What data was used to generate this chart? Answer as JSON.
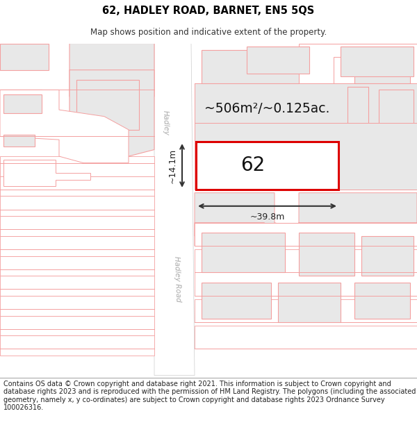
{
  "title_line1": "62, HADLEY ROAD, BARNET, EN5 5QS",
  "title_line2": "Map shows position and indicative extent of the property.",
  "footer_text": "Contains OS data © Crown copyright and database right 2021. This information is subject to Crown copyright and database rights 2023 and is reproduced with the permission of HM Land Registry. The polygons (including the associated geometry, namely x, y co-ordinates) are subject to Crown copyright and database rights 2023 Ordnance Survey 100026316.",
  "bg_color": "#ffffff",
  "map_bg": "#ffffff",
  "road_color": "#ffffff",
  "building_outline_color": "#f4a0a0",
  "building_fill_color": "#e8e8e8",
  "target_outline_color": "#dd0000",
  "annotation_color": "#222222",
  "road_text_color": "#999999",
  "area_text": "~506m²/~0.125ac.",
  "width_text": "~39.8m",
  "height_text": "~14.1m",
  "property_number": "62",
  "title_fontsize": 10.5,
  "subtitle_fontsize": 8.5,
  "footer_fontsize": 7.0
}
